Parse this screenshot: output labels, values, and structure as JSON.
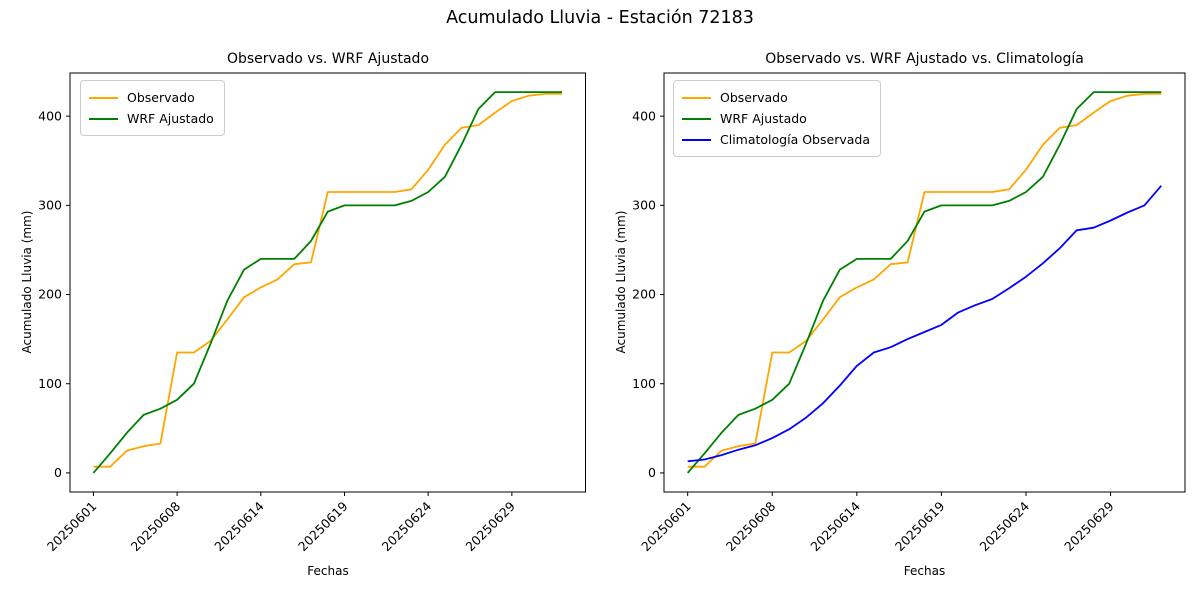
{
  "figure": {
    "title": "Acumulado Lluvia - Estación 72183"
  },
  "subplots": [
    {
      "title": "Observado vs. WRF Ajustado",
      "xlabel": "Fechas",
      "ylabel": "Acumulado Lluvia (mm)",
      "legend": [
        {
          "label": "Observado",
          "color": "#FFA500"
        },
        {
          "label": "WRF Ajustado",
          "color": "#008000"
        }
      ],
      "series_names": [
        "Observado",
        "WRF Ajustado"
      ]
    },
    {
      "title": "Observado vs. WRF Ajustado vs. Climatología",
      "xlabel": "Fechas",
      "ylabel": "Acumulado Lluvia (mm)",
      "legend": [
        {
          "label": "Observado",
          "color": "#FFA500"
        },
        {
          "label": "WRF Ajustado",
          "color": "#008000"
        },
        {
          "label": "Climatología Observada",
          "color": "#0000FF"
        }
      ],
      "series_names": [
        "Observado",
        "WRF Ajustado",
        "Climatología Observada"
      ]
    }
  ],
  "chart_data": {
    "type": "line",
    "title": "Acumulado Lluvia - Estación 72183",
    "xlabel": "Fechas",
    "ylabel": "Acumulado Lluvia (mm)",
    "n_points": 29,
    "x": [
      0,
      1,
      2,
      3,
      4,
      5,
      6,
      7,
      8,
      9,
      10,
      11,
      12,
      13,
      14,
      15,
      16,
      17,
      18,
      19,
      20,
      21,
      22,
      23,
      24,
      25,
      26,
      27,
      28
    ],
    "x_tick_positions": [
      0,
      5,
      10,
      15,
      20,
      25
    ],
    "x_tick_labels": [
      "20250601",
      "20250608",
      "20250614",
      "20250619",
      "20250624",
      "20250629"
    ],
    "x_tick_rotation": 45,
    "y_ticks": [
      0,
      100,
      200,
      300,
      400
    ],
    "xlim": [
      -1.4,
      29.4
    ],
    "ylim": [
      -21.4,
      448.4
    ],
    "grid": false,
    "legend_position": "upper left",
    "series": [
      {
        "name": "Observado",
        "color": "#FFA500",
        "plots": [
          0,
          1
        ],
        "values": [
          7,
          7,
          25,
          30,
          33,
          135,
          135,
          148,
          172,
          197,
          208,
          217,
          234,
          236,
          315,
          315,
          315,
          315,
          315,
          318,
          340,
          368,
          387,
          390,
          404,
          417,
          423,
          425,
          425
        ]
      },
      {
        "name": "WRF Ajustado",
        "color": "#008000",
        "plots": [
          0,
          1
        ],
        "values": [
          0,
          22,
          45,
          65,
          72,
          82,
          100,
          145,
          193,
          228,
          240,
          240,
          240,
          260,
          293,
          300,
          300,
          300,
          300,
          305,
          315,
          332,
          368,
          408,
          427,
          427,
          427,
          427,
          427
        ]
      },
      {
        "name": "Climatología Observada",
        "color": "#0000FF",
        "plots": [
          1
        ],
        "values": [
          13,
          15,
          20,
          26,
          31,
          39,
          49,
          62,
          78,
          98,
          120,
          135,
          141,
          150,
          158,
          166,
          180,
          188,
          195,
          207,
          220,
          235,
          252,
          272,
          275,
          283,
          292,
          300,
          322
        ]
      }
    ]
  }
}
